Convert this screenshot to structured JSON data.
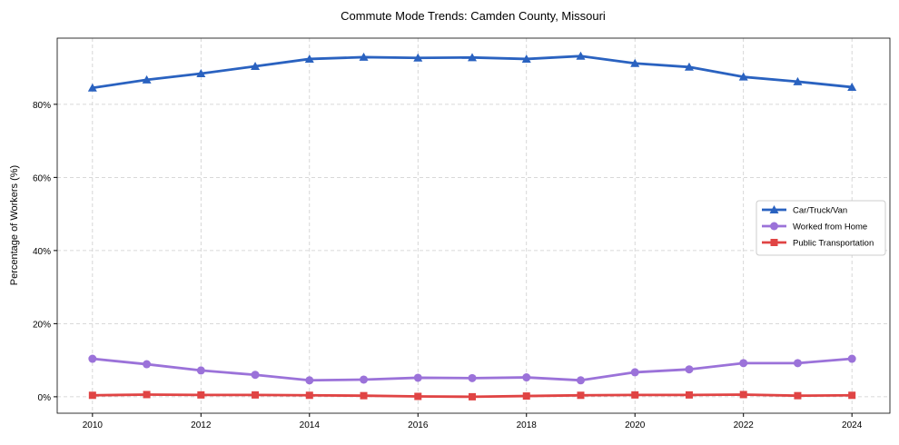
{
  "chart_data": {
    "type": "line",
    "title": "Commute Mode Trends: Camden County, Missouri",
    "xlabel": "",
    "ylabel": "Percentage of Workers (%)",
    "x": [
      2010,
      2011,
      2012,
      2013,
      2014,
      2015,
      2016,
      2017,
      2018,
      2019,
      2020,
      2021,
      2022,
      2023,
      2024
    ],
    "xticks": [
      "2010",
      "2012",
      "2014",
      "2016",
      "2018",
      "2020",
      "2022",
      "2024"
    ],
    "yticks": [
      "0%",
      "20%",
      "40%",
      "60%",
      "80%"
    ],
    "ylim": [
      -4.5,
      98.1
    ],
    "xlim": [
      2009.35,
      2024.7
    ],
    "grid": true,
    "legend_position": "center-right",
    "series": [
      {
        "name": "Car/Truck/Van",
        "color": "#2a62c0",
        "marker": "triangle",
        "values": [
          84.5,
          86.7,
          88.4,
          90.4,
          92.4,
          92.9,
          92.7,
          92.8,
          92.4,
          93.2,
          91.2,
          90.2,
          87.5,
          86.2,
          84.7
        ]
      },
      {
        "name": "Worked from Home",
        "color": "#9b72d9",
        "marker": "circle",
        "values": [
          10.4,
          8.9,
          7.2,
          6.0,
          4.5,
          4.7,
          5.2,
          5.1,
          5.3,
          4.5,
          6.7,
          7.5,
          9.2,
          9.2,
          10.4
        ]
      },
      {
        "name": "Public Transportation",
        "color": "#e04444",
        "marker": "square",
        "values": [
          0.4,
          0.6,
          0.5,
          0.5,
          0.4,
          0.3,
          0.1,
          0.0,
          0.2,
          0.4,
          0.5,
          0.5,
          0.6,
          0.3,
          0.4
        ]
      }
    ]
  }
}
